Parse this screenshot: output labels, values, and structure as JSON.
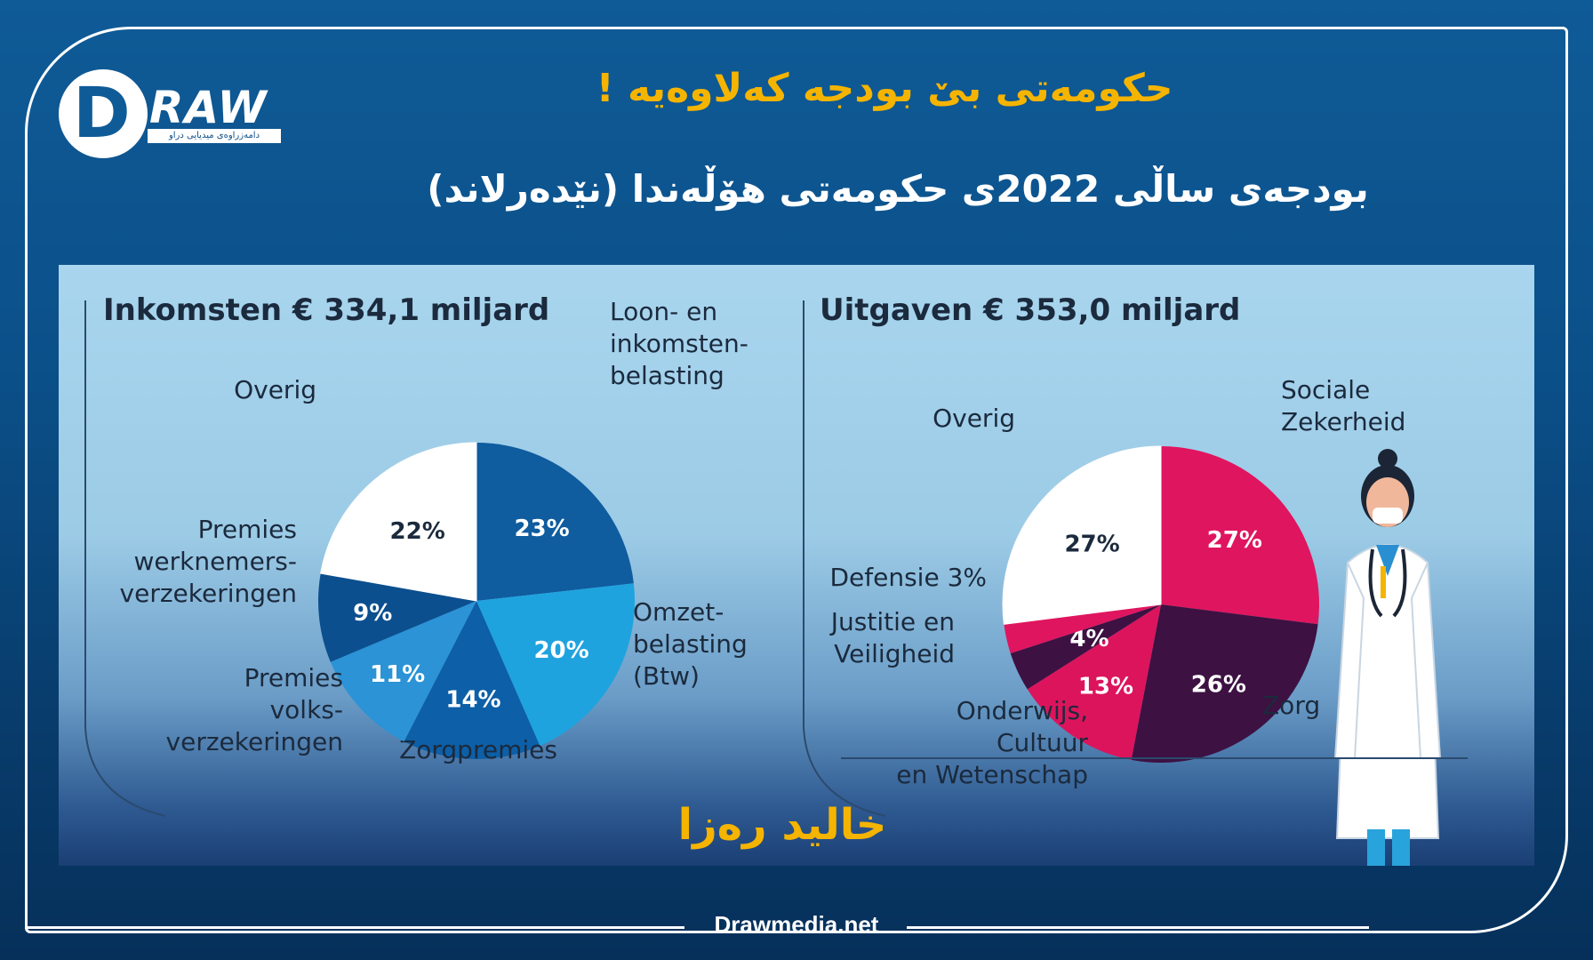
{
  "header": {
    "logo_mark": "D",
    "logo_text": "RAW",
    "logo_tagline": "دامەزراوەی میدیایی دراو",
    "title": "حکومەتی بێ بودجە کەلاوەیە !",
    "subtitle": "بودجەی ساڵی 2022ی حکومەتی هۆڵەندا (نێدەرلاند)"
  },
  "author": "خالید رەزا",
  "footer": {
    "site": "Drawmedia.net"
  },
  "colors": {
    "title_yellow": "#f5b400",
    "income_dark": "#0f5c9f",
    "income_mid": "#29a3dc",
    "income_light": "#2a8fd0",
    "expense_pink": "#e0155f",
    "expense_plum": "#3d1142",
    "white": "#ffffff"
  },
  "chart_data": [
    {
      "type": "pie",
      "title": "Inkomsten € 334,1 miljard",
      "slices": [
        {
          "label": "Loon- en inkomsten- belasting",
          "label_lines": [
            "Loon- en",
            "inkomsten-",
            "belasting"
          ],
          "value": 23,
          "value_label": "23%",
          "color": "#0f5c9f"
        },
        {
          "label": "Omzet- belasting (Btw)",
          "label_lines": [
            "Omzet-",
            "belasting",
            "(Btw)"
          ],
          "value": 20,
          "value_label": "20%",
          "color": "#1fa3df"
        },
        {
          "label": "Zorgpremies",
          "label_lines": [
            "Zorgpremies"
          ],
          "value": 14,
          "value_label": "14%",
          "color": "#0d5fa7"
        },
        {
          "label": "Premies volks- verzekeringen",
          "label_lines": [
            "Premies",
            "volks-",
            "verzekeringen"
          ],
          "value": 11,
          "value_label": "11%",
          "color": "#2b93d6"
        },
        {
          "label": "Premies werknemers- verzekeringen",
          "label_lines": [
            "Premies",
            "werknemers-",
            "verzekeringen"
          ],
          "value": 9,
          "value_label": "9%",
          "color": "#0c4f8f"
        },
        {
          "label": "Overig",
          "label_lines": [
            "Overig"
          ],
          "value": 22,
          "value_label": "22%",
          "color": "#ffffff"
        }
      ]
    },
    {
      "type": "pie",
      "title": "Uitgaven € 353,0 miljard",
      "slices": [
        {
          "label": "Sociale Zekerheid",
          "label_lines": [
            "Sociale",
            "Zekerheid"
          ],
          "value": 27,
          "value_label": "27%",
          "color": "#e0155f"
        },
        {
          "label": "Zorg",
          "label_lines": [
            "Zorg"
          ],
          "value": 26,
          "value_label": "26%",
          "color": "#3d1142"
        },
        {
          "label": "Onderwijs, Cultuur en Wetenschap",
          "label_lines": [
            "Onderwijs,",
            "Cultuur",
            "en Wetenschap"
          ],
          "value": 13,
          "value_label": "13%",
          "color": "#dc145c"
        },
        {
          "label": "Justitie en Veiligheid",
          "label_lines": [
            "Justitie en",
            "Veiligheid"
          ],
          "value": 4,
          "value_label": "4%",
          "color": "#3d1142"
        },
        {
          "label": "Defensie",
          "label_lines": [
            "Defensie 3%"
          ],
          "value": 3,
          "value_label": "",
          "color": "#e0155f"
        },
        {
          "label": "Overig",
          "label_lines": [
            "Overig"
          ],
          "value": 27,
          "value_label": "27%",
          "color": "#ffffff"
        }
      ]
    }
  ]
}
